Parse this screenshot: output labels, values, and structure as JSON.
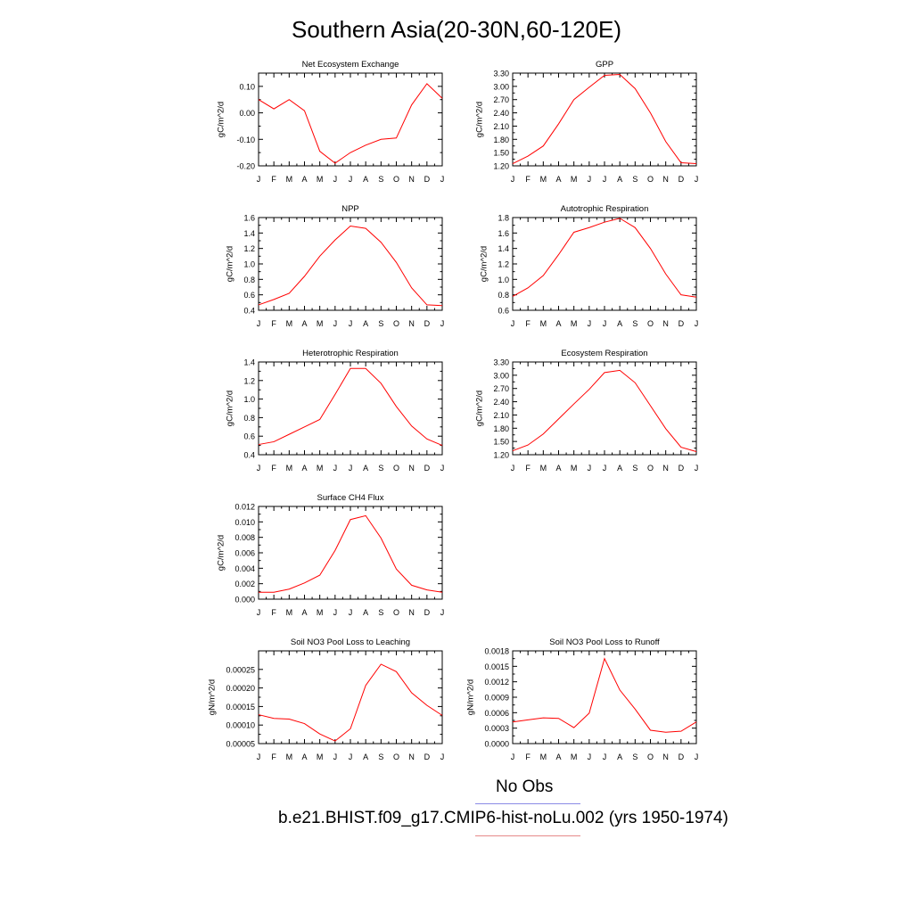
{
  "title": "Southern Asia(20-30N,60-120E)",
  "legend": {
    "obs_label": "No Obs",
    "run_label": "b.e21.BHIST.f09_g17.CMIP6-hist-noLu.002 (yrs 1950-1974)",
    "obs_color": "#8a8ae6",
    "run_color": "#e68a8a"
  },
  "series_color": "#ff0000",
  "chart_data": [
    {
      "type": "line",
      "title": "Net Ecosystem Exchange",
      "ylabel": "gC/m^2/d",
      "categories": [
        "J",
        "F",
        "M",
        "A",
        "M",
        "J",
        "J",
        "A",
        "S",
        "O",
        "N",
        "D",
        "J"
      ],
      "values": [
        0.05,
        0.015,
        0.05,
        0.008,
        -0.145,
        -0.19,
        -0.15,
        -0.122,
        -0.1,
        -0.095,
        0.03,
        0.11,
        0.055
      ],
      "ylim": [
        -0.2,
        0.15
      ],
      "yticks": [
        -0.2,
        -0.1,
        0.0,
        0.1
      ],
      "ytick_labels": [
        "-0.20",
        "-0.10",
        "0.00",
        "0.10"
      ]
    },
    {
      "type": "line",
      "title": "GPP",
      "ylabel": "gC/m^2/d",
      "categories": [
        "J",
        "F",
        "M",
        "A",
        "M",
        "J",
        "J",
        "A",
        "S",
        "O",
        "N",
        "D",
        "J"
      ],
      "values": [
        1.25,
        1.42,
        1.65,
        2.15,
        2.7,
        2.98,
        3.25,
        3.27,
        2.95,
        2.4,
        1.75,
        1.27,
        1.25
      ],
      "ylim": [
        1.2,
        3.3
      ],
      "yticks": [
        1.2,
        1.5,
        1.8,
        2.1,
        2.4,
        2.7,
        3.0,
        3.3
      ],
      "ytick_labels": [
        "1.20",
        "1.50",
        "1.80",
        "2.10",
        "2.40",
        "2.70",
        "3.00",
        "3.30"
      ]
    },
    {
      "type": "line",
      "title": "NPP",
      "ylabel": "gC/m^2/d",
      "categories": [
        "J",
        "F",
        "M",
        "A",
        "M",
        "J",
        "J",
        "A",
        "S",
        "O",
        "N",
        "D",
        "J"
      ],
      "values": [
        0.47,
        0.54,
        0.62,
        0.84,
        1.1,
        1.31,
        1.49,
        1.46,
        1.28,
        1.02,
        0.69,
        0.47,
        0.46
      ],
      "ylim": [
        0.4,
        1.6
      ],
      "yticks": [
        0.4,
        0.6,
        0.8,
        1.0,
        1.2,
        1.4,
        1.6
      ],
      "ytick_labels": [
        "0.4",
        "0.6",
        "0.8",
        "1.0",
        "1.2",
        "1.4",
        "1.6"
      ]
    },
    {
      "type": "line",
      "title": "Autotrophic Respiration",
      "ylabel": "gC/m^2/d",
      "categories": [
        "J",
        "F",
        "M",
        "A",
        "M",
        "J",
        "J",
        "A",
        "S",
        "O",
        "N",
        "D",
        "J"
      ],
      "values": [
        0.78,
        0.89,
        1.05,
        1.32,
        1.61,
        1.67,
        1.74,
        1.79,
        1.67,
        1.4,
        1.07,
        0.8,
        0.77
      ],
      "ylim": [
        0.6,
        1.8
      ],
      "yticks": [
        0.6,
        0.8,
        1.0,
        1.2,
        1.4,
        1.6,
        1.8
      ],
      "ytick_labels": [
        "0.6",
        "0.8",
        "1.0",
        "1.2",
        "1.4",
        "1.6",
        "1.8"
      ]
    },
    {
      "type": "line",
      "title": "Heterotrophic Respiration",
      "ylabel": "gC/m^2/d",
      "categories": [
        "J",
        "F",
        "M",
        "A",
        "M",
        "J",
        "J",
        "A",
        "S",
        "O",
        "N",
        "D",
        "J"
      ],
      "values": [
        0.51,
        0.54,
        0.62,
        0.7,
        0.78,
        1.05,
        1.33,
        1.33,
        1.17,
        0.92,
        0.71,
        0.57,
        0.5
      ],
      "ylim": [
        0.4,
        1.4
      ],
      "yticks": [
        0.4,
        0.6,
        0.8,
        1.0,
        1.2,
        1.4
      ],
      "ytick_labels": [
        "0.4",
        "0.6",
        "0.8",
        "1.0",
        "1.2",
        "1.4"
      ]
    },
    {
      "type": "line",
      "title": "Ecosystem Respiration",
      "ylabel": "gC/m^2/d",
      "categories": [
        "J",
        "F",
        "M",
        "A",
        "M",
        "J",
        "J",
        "A",
        "S",
        "O",
        "N",
        "D",
        "J"
      ],
      "values": [
        1.29,
        1.42,
        1.67,
        2.01,
        2.35,
        2.68,
        3.06,
        3.11,
        2.83,
        2.31,
        1.79,
        1.37,
        1.27
      ],
      "ylim": [
        1.2,
        3.3
      ],
      "yticks": [
        1.2,
        1.5,
        1.8,
        2.1,
        2.4,
        2.7,
        3.0,
        3.3
      ],
      "ytick_labels": [
        "1.20",
        "1.50",
        "1.80",
        "2.10",
        "2.40",
        "2.70",
        "3.00",
        "3.30"
      ]
    },
    {
      "type": "line",
      "title": "Surface CH4 Flux",
      "ylabel": "gC/m^2/d",
      "categories": [
        "J",
        "F",
        "M",
        "A",
        "M",
        "J",
        "J",
        "A",
        "S",
        "O",
        "N",
        "D",
        "J"
      ],
      "values": [
        0.0009,
        0.0009,
        0.0013,
        0.0021,
        0.0031,
        0.0063,
        0.0103,
        0.0108,
        0.0079,
        0.0039,
        0.0018,
        0.0012,
        0.0009
      ],
      "ylim": [
        0.0,
        0.012
      ],
      "yticks": [
        0.0,
        0.002,
        0.004,
        0.006,
        0.008,
        0.01,
        0.012
      ],
      "ytick_labels": [
        "0.000",
        "0.002",
        "0.004",
        "0.006",
        "0.008",
        "0.010",
        "0.012"
      ]
    },
    {
      "type": "line",
      "title": "Soil NO3 Pool Loss to Leaching",
      "ylabel": "gN/m^2/d",
      "categories": [
        "J",
        "F",
        "M",
        "A",
        "M",
        "J",
        "J",
        "A",
        "S",
        "O",
        "N",
        "D",
        "J"
      ],
      "values": [
        0.000128,
        0.000118,
        0.000116,
        0.000104,
        7.6e-05,
        5.7e-05,
        9e-05,
        0.000207,
        0.000264,
        0.000244,
        0.000187,
        0.000153,
        0.000126
      ],
      "ylim": [
        5e-05,
        0.0003
      ],
      "yticks": [
        5e-05,
        0.0001,
        0.00015,
        0.0002,
        0.00025
      ],
      "ytick_labels": [
        "0.00005",
        "0.00010",
        "0.00015",
        "0.00020",
        "0.00025"
      ]
    },
    {
      "type": "line",
      "title": "Soil NO3 Pool Loss to Runoff",
      "ylabel": "gN/m^2/d",
      "categories": [
        "J",
        "F",
        "M",
        "A",
        "M",
        "J",
        "J",
        "A",
        "S",
        "O",
        "N",
        "D",
        "J"
      ],
      "values": [
        0.00042,
        0.00046,
        0.0005,
        0.00049,
        0.00031,
        0.00059,
        0.00165,
        0.00104,
        0.00067,
        0.00026,
        0.00022,
        0.00024,
        0.00042
      ],
      "ylim": [
        0.0,
        0.0018
      ],
      "yticks": [
        0.0,
        0.0003,
        0.0006,
        0.0009,
        0.0012,
        0.0015,
        0.0018
      ],
      "ytick_labels": [
        "0.0000",
        "0.0003",
        "0.0006",
        "0.0009",
        "0.0012",
        "0.0015",
        "0.0018"
      ]
    }
  ]
}
